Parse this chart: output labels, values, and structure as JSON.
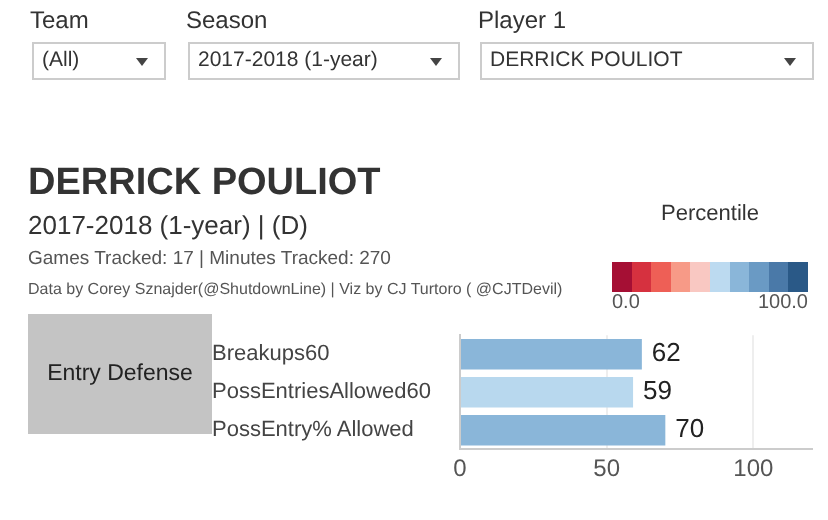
{
  "chart_data": {
    "type": "bar",
    "orientation": "horizontal",
    "title": "DERRICK POULIOT",
    "subtitle": "2017-2018 (1-year) | (D)",
    "annotations": [
      "Team",
      "(All)",
      "Season",
      "2017-2018 (1-year)",
      "Player 1",
      "DERRICK POULIOT",
      "Games Tracked: 17  | Minutes Tracked: 270",
      "Data by Corey Sznajder(@ShutdownLine) | Viz by CJ Turtoro ( @CJTDevil)",
      "Entry Defense"
    ],
    "categories": [
      "Breakups60",
      "PossEntriesAllowed60",
      "PossEntry% Allowed"
    ],
    "values": [
      62,
      59,
      70
    ],
    "colors": [
      "#8ab6d9",
      "#b8d8ee",
      "#8ab6d9"
    ],
    "xlim": [
      0,
      120
    ],
    "xticks": [
      0,
      50,
      100
    ],
    "grid": "x",
    "data_labels": true,
    "clabel": "Percentile",
    "clim": [
      0,
      100
    ],
    "cticks": [
      {
        "value": 0,
        "label": "0.0"
      },
      {
        "value": 100,
        "label": "100.0"
      }
    ]
  }
}
